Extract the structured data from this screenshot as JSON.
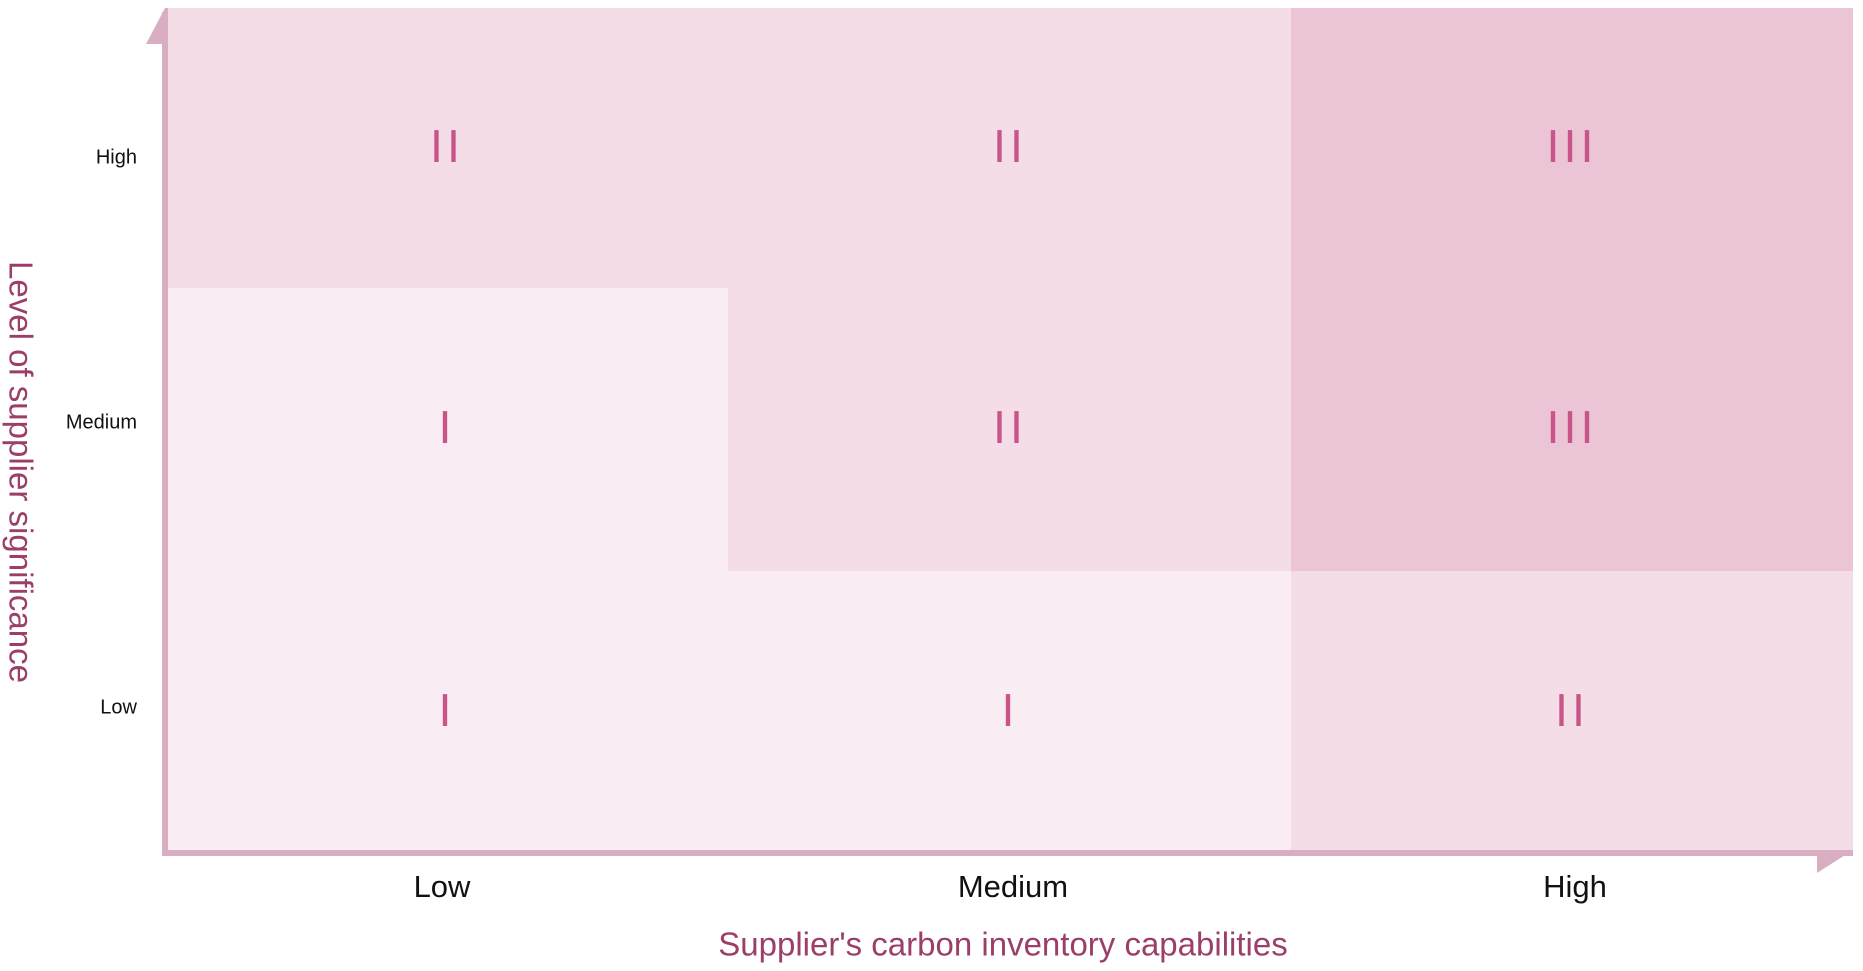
{
  "y_axis_title": "Level of supplier significance",
  "x_axis_title": "Supplier's carbon inventory capabilities",
  "row_labels": [
    "High",
    "Medium",
    "Low"
  ],
  "column_labels": [
    "Low",
    "Medium",
    "High"
  ],
  "cells": [
    [
      "II",
      "II",
      "III"
    ],
    [
      "I",
      "II",
      "III"
    ],
    [
      "I",
      "I",
      "II"
    ]
  ]
}
